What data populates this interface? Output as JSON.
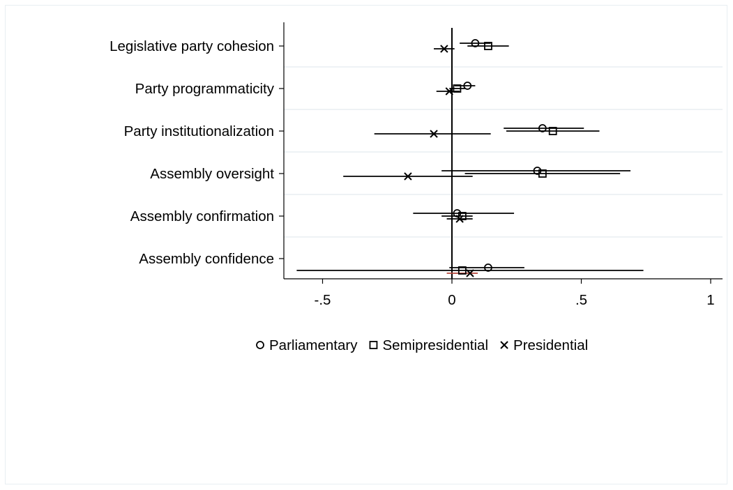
{
  "chart_data": {
    "type": "scatter",
    "subtype": "coefficient-plot",
    "title": "",
    "xlabel": "",
    "ylabel": "",
    "xlim": [
      -0.65,
      1.05
    ],
    "xticks": [
      -0.5,
      0,
      0.5,
      1
    ],
    "xtick_labels": [
      "-.5",
      "0",
      ".5",
      "1"
    ],
    "reference_line_x": 0,
    "grid": "horizontal",
    "legend_position": "bottom",
    "categories": [
      "Legislative party cohesion",
      "Party programmaticity",
      "Party institutionalization",
      "Assembly oversight",
      "Assembly confirmation",
      "Assembly confidence"
    ],
    "series": [
      {
        "name": "Parliamentary",
        "marker": "circle",
        "points": [
          {
            "estimate": 0.09,
            "ci": [
              0.03,
              0.15
            ]
          },
          {
            "estimate": 0.06,
            "ci": [
              0.01,
              0.09
            ]
          },
          {
            "estimate": 0.35,
            "ci": [
              0.2,
              0.51
            ]
          },
          {
            "estimate": 0.33,
            "ci": [
              -0.04,
              0.69
            ]
          },
          {
            "estimate": 0.02,
            "ci": [
              -0.15,
              0.24
            ]
          },
          {
            "estimate": 0.14,
            "ci": [
              -0.01,
              0.28
            ]
          }
        ]
      },
      {
        "name": "Semipresidential",
        "marker": "square",
        "points": [
          {
            "estimate": 0.14,
            "ci": [
              0.06,
              0.22
            ]
          },
          {
            "estimate": 0.02,
            "ci": [
              -0.01,
              0.05
            ]
          },
          {
            "estimate": 0.39,
            "ci": [
              0.21,
              0.57
            ]
          },
          {
            "estimate": 0.35,
            "ci": [
              0.05,
              0.65
            ]
          },
          {
            "estimate": 0.04,
            "ci": [
              -0.04,
              0.08
            ]
          },
          {
            "estimate": 0.04,
            "ci": [
              -0.6,
              0.74
            ]
          }
        ]
      },
      {
        "name": "Presidential",
        "marker": "x",
        "points": [
          {
            "estimate": -0.03,
            "ci": [
              -0.07,
              0.01
            ]
          },
          {
            "estimate": -0.01,
            "ci": [
              -0.06,
              0.03
            ]
          },
          {
            "estimate": -0.07,
            "ci": [
              -0.3,
              0.15
            ]
          },
          {
            "estimate": -0.17,
            "ci": [
              -0.42,
              0.08
            ]
          },
          {
            "estimate": 0.03,
            "ci": [
              -0.02,
              0.08
            ]
          },
          {
            "estimate": 0.07,
            "ci": [
              -0.02,
              0.1
            ]
          }
        ]
      }
    ],
    "colors": {
      "marker": "#000000",
      "grid": "#e8eef2",
      "axis": "#000000",
      "accent_ci": "#b2443a"
    }
  }
}
